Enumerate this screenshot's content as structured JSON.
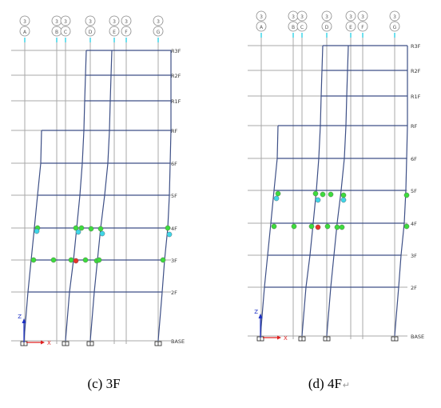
{
  "panels": [
    {
      "caption": "(c) 3F",
      "floors": [
        "R3F",
        "R2F",
        "R1F",
        "RF",
        "6F",
        "5F",
        "4F",
        "3F",
        "2F",
        "BASE"
      ],
      "grid_lines": [
        {
          "top": "3",
          "bottom": "A"
        },
        {
          "top": "3",
          "bottom": "B"
        },
        {
          "top": "3",
          "bottom": "C"
        },
        {
          "top": "3",
          "bottom": "D"
        },
        {
          "top": "3",
          "bottom": "E"
        },
        {
          "top": "3",
          "bottom": "F"
        },
        {
          "top": "3",
          "bottom": "G"
        }
      ],
      "axis_z": "Z",
      "axis_x": "X"
    },
    {
      "caption": "(d) 4F",
      "caption_mark": "↵",
      "floors": [
        "R3F",
        "R2F",
        "R1F",
        "RF",
        "6F",
        "5F",
        "4F",
        "3F",
        "2F",
        "BASE"
      ],
      "grid_lines": [
        {
          "top": "3",
          "bottom": "A"
        },
        {
          "top": "3",
          "bottom": "B"
        },
        {
          "top": "3",
          "bottom": "C"
        },
        {
          "top": "3",
          "bottom": "D"
        },
        {
          "top": "3",
          "bottom": "E"
        },
        {
          "top": "3",
          "bottom": "F"
        },
        {
          "top": "3",
          "bottom": "G"
        }
      ],
      "axis_z": "Z",
      "axis_x": "X"
    }
  ],
  "colors": {
    "frame": "#3d4f86",
    "grid": "#a9a9a9",
    "hinge_green": "#3ddc3d",
    "hinge_cyan": "#3fd6e8",
    "hinge_red": "#e8322a",
    "axis_z": "#1b2fc4",
    "axis_x": "#e02020"
  }
}
